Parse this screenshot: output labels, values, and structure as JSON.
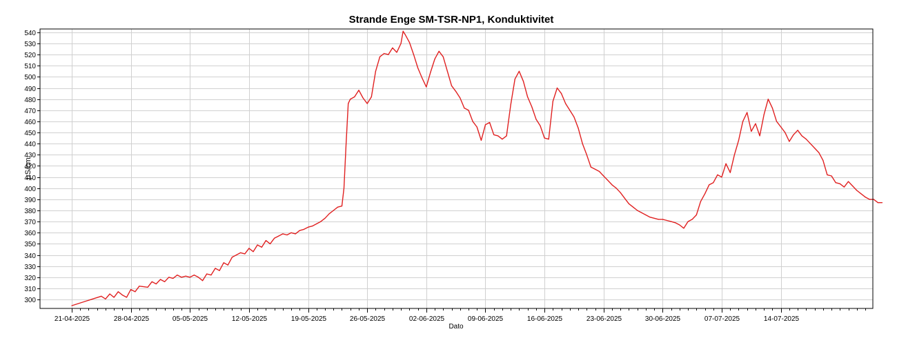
{
  "chart_data": {
    "type": "line",
    "title": "Strande Enge SM-TSR-NP1, Konduktivitet",
    "xlabel": "Dato",
    "ylabel": "µS/cm",
    "xlim": [
      "2025-04-21",
      "2025-07-24"
    ],
    "ylim": [
      292,
      543
    ],
    "grid": true,
    "x_ticks": [
      "21-04-2025",
      "28-04-2025",
      "05-05-2025",
      "12-05-2025",
      "19-05-2025",
      "26-05-2025",
      "02-06-2025",
      "09-06-2025",
      "16-06-2025",
      "23-06-2025",
      "30-06-2025",
      "07-07-2025",
      "14-07-2025"
    ],
    "y_ticks": [
      300,
      310,
      320,
      330,
      340,
      350,
      360,
      370,
      380,
      390,
      400,
      410,
      420,
      430,
      440,
      450,
      460,
      470,
      480,
      490,
      500,
      510,
      520,
      530,
      540
    ],
    "series": [
      {
        "color": "#e02020",
        "points": [
          [
            "2025-04-21T00:00",
            294.5
          ],
          [
            "2025-04-24T12:00",
            303
          ],
          [
            "2025-04-25T00:00",
            300.5
          ],
          [
            "2025-04-25T12:00",
            305
          ],
          [
            "2025-04-26T00:00",
            302
          ],
          [
            "2025-04-26T12:00",
            307
          ],
          [
            "2025-04-27T00:00",
            304
          ],
          [
            "2025-04-27T12:00",
            302
          ],
          [
            "2025-04-28T00:00",
            309
          ],
          [
            "2025-04-28T12:00",
            307
          ],
          [
            "2025-04-29T00:00",
            312
          ],
          [
            "2025-04-30T00:00",
            311
          ],
          [
            "2025-04-30T12:00",
            316
          ],
          [
            "2025-05-01T00:00",
            314
          ],
          [
            "2025-05-01T12:00",
            318
          ],
          [
            "2025-05-02T00:00",
            316
          ],
          [
            "2025-05-02T12:00",
            320
          ],
          [
            "2025-05-03T00:00",
            319
          ],
          [
            "2025-05-03T12:00",
            322
          ],
          [
            "2025-05-04T00:00",
            320
          ],
          [
            "2025-05-04T12:00",
            321
          ],
          [
            "2025-05-05T00:00",
            320
          ],
          [
            "2025-05-05T12:00",
            322
          ],
          [
            "2025-05-06T00:00",
            320
          ],
          [
            "2025-05-06T12:00",
            317
          ],
          [
            "2025-05-07T00:00",
            323
          ],
          [
            "2025-05-07T12:00",
            322
          ],
          [
            "2025-05-08T00:00",
            328
          ],
          [
            "2025-05-08T12:00",
            326
          ],
          [
            "2025-05-09T00:00",
            333
          ],
          [
            "2025-05-09T12:00",
            331
          ],
          [
            "2025-05-10T00:00",
            338
          ],
          [
            "2025-05-10T12:00",
            340
          ],
          [
            "2025-05-11T00:00",
            342
          ],
          [
            "2025-05-11T12:00",
            341
          ],
          [
            "2025-05-12T00:00",
            346
          ],
          [
            "2025-05-12T12:00",
            343
          ],
          [
            "2025-05-13T00:00",
            349
          ],
          [
            "2025-05-13T12:00",
            347
          ],
          [
            "2025-05-14T00:00",
            353
          ],
          [
            "2025-05-14T12:00",
            350
          ],
          [
            "2025-05-15T00:00",
            355
          ],
          [
            "2025-05-15T12:00",
            357
          ],
          [
            "2025-05-16T00:00",
            359
          ],
          [
            "2025-05-16T12:00",
            358
          ],
          [
            "2025-05-17T00:00",
            360
          ],
          [
            "2025-05-17T12:00",
            359
          ],
          [
            "2025-05-18T00:00",
            362
          ],
          [
            "2025-05-18T12:00",
            363
          ],
          [
            "2025-05-19T00:00",
            365
          ],
          [
            "2025-05-19T12:00",
            366
          ],
          [
            "2025-05-20T00:00",
            368
          ],
          [
            "2025-05-20T12:00",
            370
          ],
          [
            "2025-05-21T00:00",
            373
          ],
          [
            "2025-05-21T12:00",
            377
          ],
          [
            "2025-05-22T00:00",
            380
          ],
          [
            "2025-05-22T12:00",
            383
          ],
          [
            "2025-05-23T00:00",
            384
          ],
          [
            "2025-05-23T06:00",
            400
          ],
          [
            "2025-05-23T12:00",
            440
          ],
          [
            "2025-05-23T18:00",
            476
          ],
          [
            "2025-05-24T00:00",
            480
          ],
          [
            "2025-05-24T12:00",
            482
          ],
          [
            "2025-05-25T00:00",
            488
          ],
          [
            "2025-05-25T12:00",
            481
          ],
          [
            "2025-05-26T00:00",
            476
          ],
          [
            "2025-05-26T12:00",
            482
          ],
          [
            "2025-05-27T00:00",
            505
          ],
          [
            "2025-05-27T12:00",
            518
          ],
          [
            "2025-05-28T00:00",
            521
          ],
          [
            "2025-05-28T12:00",
            520
          ],
          [
            "2025-05-29T00:00",
            526
          ],
          [
            "2025-05-29T12:00",
            522
          ],
          [
            "2025-05-30T00:00",
            530
          ],
          [
            "2025-05-30T06:00",
            541
          ],
          [
            "2025-05-30T12:00",
            538
          ],
          [
            "2025-05-31T00:00",
            531
          ],
          [
            "2025-05-31T12:00",
            520
          ],
          [
            "2025-06-01T00:00",
            508
          ],
          [
            "2025-06-01T12:00",
            499
          ],
          [
            "2025-06-02T00:00",
            491
          ],
          [
            "2025-06-02T12:00",
            504
          ],
          [
            "2025-06-03T00:00",
            516
          ],
          [
            "2025-06-03T12:00",
            523
          ],
          [
            "2025-06-04T00:00",
            518
          ],
          [
            "2025-06-04T12:00",
            505
          ],
          [
            "2025-06-05T00:00",
            492
          ],
          [
            "2025-06-05T12:00",
            487
          ],
          [
            "2025-06-06T00:00",
            481
          ],
          [
            "2025-06-06T12:00",
            472
          ],
          [
            "2025-06-07T00:00",
            470
          ],
          [
            "2025-06-07T12:00",
            460
          ],
          [
            "2025-06-08T00:00",
            455
          ],
          [
            "2025-06-08T12:00",
            443
          ],
          [
            "2025-06-09T00:00",
            457
          ],
          [
            "2025-06-09T12:00",
            459
          ],
          [
            "2025-06-10T00:00",
            448
          ],
          [
            "2025-06-10T12:00",
            447
          ],
          [
            "2025-06-11T00:00",
            444
          ],
          [
            "2025-06-11T12:00",
            447
          ],
          [
            "2025-06-12T00:00",
            475
          ],
          [
            "2025-06-12T12:00",
            498
          ],
          [
            "2025-06-13T00:00",
            505
          ],
          [
            "2025-06-13T12:00",
            496
          ],
          [
            "2025-06-14T00:00",
            482
          ],
          [
            "2025-06-14T12:00",
            473
          ],
          [
            "2025-06-15T00:00",
            462
          ],
          [
            "2025-06-15T12:00",
            456
          ],
          [
            "2025-06-16T00:00",
            445
          ],
          [
            "2025-06-16T12:00",
            444
          ],
          [
            "2025-06-17T00:00",
            478
          ],
          [
            "2025-06-17T12:00",
            490
          ],
          [
            "2025-06-18T00:00",
            485
          ],
          [
            "2025-06-18T12:00",
            476
          ],
          [
            "2025-06-19T00:00",
            470
          ],
          [
            "2025-06-19T12:00",
            464
          ],
          [
            "2025-06-20T00:00",
            454
          ],
          [
            "2025-06-20T12:00",
            440
          ],
          [
            "2025-06-21T00:00",
            430
          ],
          [
            "2025-06-21T12:00",
            419
          ],
          [
            "2025-06-22T00:00",
            417
          ],
          [
            "2025-06-22T12:00",
            415
          ],
          [
            "2025-06-23T00:00",
            411
          ],
          [
            "2025-06-23T12:00",
            407
          ],
          [
            "2025-06-24T00:00",
            403
          ],
          [
            "2025-06-24T12:00",
            400
          ],
          [
            "2025-06-25T00:00",
            396
          ],
          [
            "2025-06-25T12:00",
            391
          ],
          [
            "2025-06-26T00:00",
            386
          ],
          [
            "2025-06-26T12:00",
            383
          ],
          [
            "2025-06-27T00:00",
            380
          ],
          [
            "2025-06-27T12:00",
            378
          ],
          [
            "2025-06-28T00:00",
            376
          ],
          [
            "2025-06-28T12:00",
            374
          ],
          [
            "2025-06-29T00:00",
            373
          ],
          [
            "2025-06-29T12:00",
            372
          ],
          [
            "2025-06-30T00:00",
            372
          ],
          [
            "2025-06-30T12:00",
            371
          ],
          [
            "2025-07-01T00:00",
            370
          ],
          [
            "2025-07-01T12:00",
            369
          ],
          [
            "2025-07-02T00:00",
            367
          ],
          [
            "2025-07-02T12:00",
            364
          ],
          [
            "2025-07-03T00:00",
            370
          ],
          [
            "2025-07-03T12:00",
            372
          ],
          [
            "2025-07-04T00:00",
            376
          ],
          [
            "2025-07-04T12:00",
            388
          ],
          [
            "2025-07-05T00:00",
            395
          ],
          [
            "2025-07-05T12:00",
            403
          ],
          [
            "2025-07-06T00:00",
            405
          ],
          [
            "2025-07-06T12:00",
            412
          ],
          [
            "2025-07-07T00:00",
            410
          ],
          [
            "2025-07-07T12:00",
            422
          ],
          [
            "2025-07-08T00:00",
            414
          ],
          [
            "2025-07-08T12:00",
            430
          ],
          [
            "2025-07-09T00:00",
            443
          ],
          [
            "2025-07-09T12:00",
            460
          ],
          [
            "2025-07-10T00:00",
            468
          ],
          [
            "2025-07-10T12:00",
            451
          ],
          [
            "2025-07-11T00:00",
            458
          ],
          [
            "2025-07-11T12:00",
            447
          ],
          [
            "2025-07-12T00:00",
            466
          ],
          [
            "2025-07-12T12:00",
            480
          ],
          [
            "2025-07-13T00:00",
            472
          ],
          [
            "2025-07-13T12:00",
            460
          ],
          [
            "2025-07-14T00:00",
            455
          ],
          [
            "2025-07-14T12:00",
            450
          ],
          [
            "2025-07-15T00:00",
            442
          ],
          [
            "2025-07-15T12:00",
            448
          ],
          [
            "2025-07-16T00:00",
            452
          ],
          [
            "2025-07-16T12:00",
            447
          ],
          [
            "2025-07-17T00:00",
            444
          ],
          [
            "2025-07-17T12:00",
            440
          ],
          [
            "2025-07-18T00:00",
            436
          ],
          [
            "2025-07-18T12:00",
            432
          ],
          [
            "2025-07-19T00:00",
            425
          ],
          [
            "2025-07-19T12:00",
            412
          ],
          [
            "2025-07-20T00:00",
            411
          ],
          [
            "2025-07-20T12:00",
            405
          ],
          [
            "2025-07-21T00:00",
            404
          ],
          [
            "2025-07-21T12:00",
            401
          ],
          [
            "2025-07-22T00:00",
            406
          ],
          [
            "2025-07-22T12:00",
            402
          ],
          [
            "2025-07-23T00:00",
            398
          ],
          [
            "2025-07-23T12:00",
            395
          ],
          [
            "2025-07-24T00:00",
            392
          ],
          [
            "2025-07-24T12:00",
            390
          ],
          [
            "2025-07-25T00:00",
            390
          ],
          [
            "2025-07-25T12:00",
            387
          ],
          [
            "2025-07-26T00:00",
            387
          ]
        ]
      }
    ]
  }
}
